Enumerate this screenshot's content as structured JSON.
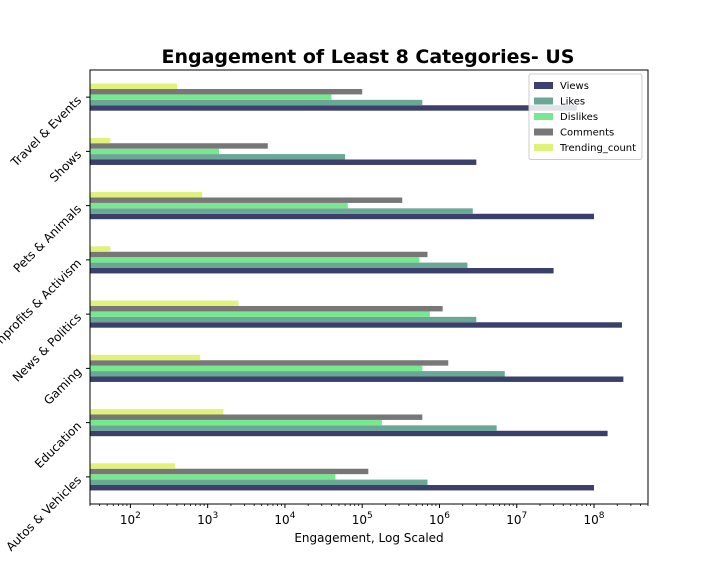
{
  "chart_data": {
    "type": "bar",
    "orientation": "horizontal",
    "title": "Engagement of Least 8 Categories- US",
    "xlabel": "Engagement, Log Scaled",
    "ylabel": "",
    "xscale": "log",
    "xlim": [
      30,
      500000000
    ],
    "xticks": [
      {
        "base": "10",
        "exp": "2",
        "value": 100
      },
      {
        "base": "10",
        "exp": "3",
        "value": 1000
      },
      {
        "base": "10",
        "exp": "4",
        "value": 10000
      },
      {
        "base": "10",
        "exp": "5",
        "value": 100000
      },
      {
        "base": "10",
        "exp": "6",
        "value": 1000000
      },
      {
        "base": "10",
        "exp": "7",
        "value": 10000000
      },
      {
        "base": "10",
        "exp": "8",
        "value": 100000000
      }
    ],
    "categories": [
      "Autos & Vehicles",
      "Education",
      "Gaming",
      "News & Politics",
      "Nonprofits & Activism",
      "Pets & Animals",
      "Shows",
      "Travel & Events"
    ],
    "series": [
      {
        "name": "Views",
        "color": "#3b3f6b",
        "values": [
          100000000,
          150000000,
          240000000,
          230000000,
          30000000,
          100000000,
          3000000,
          60000000
        ]
      },
      {
        "name": "Likes",
        "color": "#6aa895",
        "values": [
          700000,
          5500000,
          7000000,
          3000000,
          2300000,
          2700000,
          60000,
          600000
        ]
      },
      {
        "name": "Dislikes",
        "color": "#77e890",
        "values": [
          45000,
          180000,
          600000,
          750000,
          550000,
          65000,
          1400,
          40000
        ]
      },
      {
        "name": "Comments",
        "color": "#777777",
        "values": [
          120000,
          600000,
          1300000,
          1100000,
          700000,
          330000,
          6000,
          100000
        ]
      },
      {
        "name": "Trending_count",
        "color": "#e0f27a",
        "values": [
          380,
          1600,
          800,
          2500,
          55,
          850,
          55,
          400
        ]
      }
    ],
    "legend_position": "top-right",
    "grid": false
  }
}
